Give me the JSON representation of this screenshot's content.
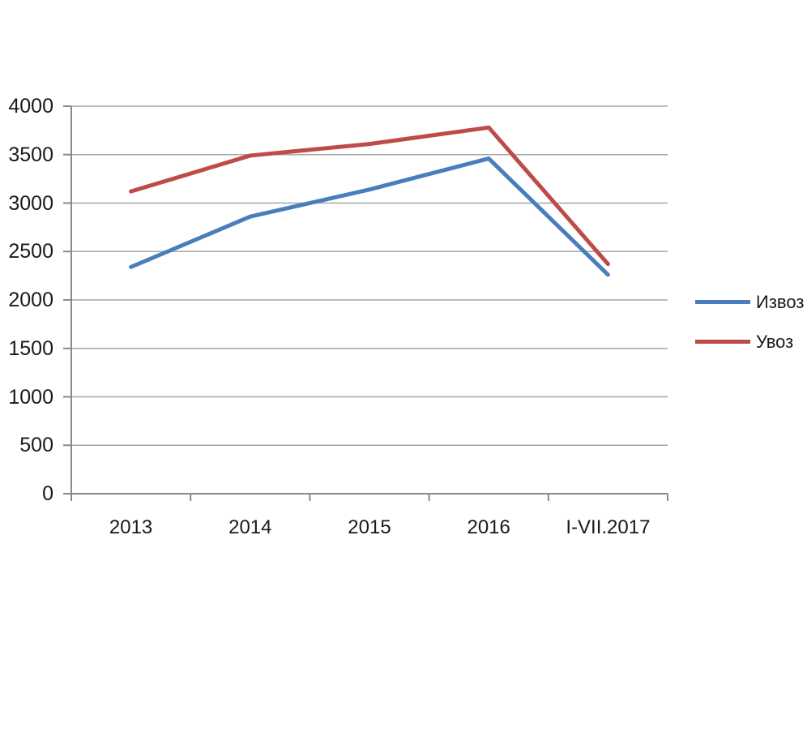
{
  "chart_data": {
    "type": "line",
    "title": "",
    "xlabel": "",
    "ylabel": "",
    "categories": [
      "2013",
      "2014",
      "2015",
      "2016",
      "I-VII.2017"
    ],
    "series": [
      {
        "name": "Извоз",
        "color": "#4A7EBB",
        "values": [
          2340,
          2860,
          3140,
          3460,
          2260
        ]
      },
      {
        "name": "Увоз",
        "color": "#BE4B48",
        "values": [
          3120,
          3490,
          3610,
          3780,
          2370
        ]
      }
    ],
    "ylim": [
      0,
      4000
    ],
    "ytick_step": 500,
    "ytick_labels": [
      "0",
      "500",
      "1000",
      "1500",
      "2000",
      "2500",
      "3000",
      "3500",
      "4000"
    ],
    "grid": true,
    "legend_position": "right",
    "colors": {
      "gridline": "#a6a6a6",
      "axis": "#898989",
      "text": "#1a1a1a",
      "background": "#ffffff"
    }
  }
}
